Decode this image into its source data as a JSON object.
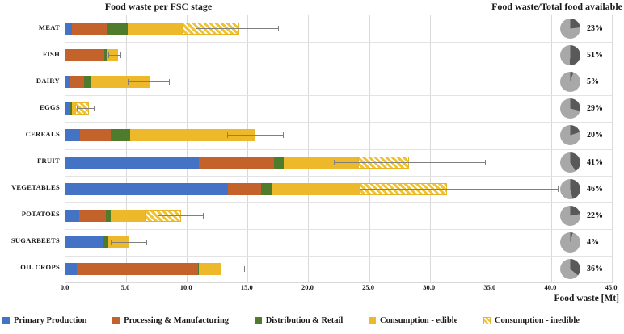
{
  "titles": {
    "left": "Food waste per FSC stage",
    "right": "Food waste/Total food available"
  },
  "colors": {
    "blue": "#4472C4",
    "orange": "#C3632B",
    "green": "#4E7B2C",
    "yellow": "#EDB829",
    "pie_dark": "#595959",
    "pie_light": "#A8A8A8",
    "grid": "#D9D9D9",
    "error_bar": "#7F7F7F"
  },
  "chart_data": {
    "type": "bar",
    "orientation": "horizontal",
    "stacked": true,
    "title": "Food waste per FSC stage",
    "xlabel": "Food waste [Mt]",
    "xlim": [
      0,
      45
    ],
    "grid": true,
    "x_ticks": [
      "0.0",
      "5.0",
      "10.0",
      "15.0",
      "20.0",
      "25.0",
      "30.0",
      "35.0",
      "40.0",
      "45.0"
    ],
    "categories": [
      "MEAT",
      "FISH",
      "DAIRY",
      "EGGS",
      "CEREALS",
      "FRUIT",
      "VEGETABLES",
      "POTATOES",
      "SUGARBEETS",
      "OIL CROPS"
    ],
    "series": [
      {
        "name": "Primary Production",
        "color": "#4472C4",
        "hatched": false,
        "values": [
          0.5,
          0.0,
          0.4,
          0.3,
          1.2,
          11.0,
          13.4,
          1.1,
          3.1,
          0.9
        ]
      },
      {
        "name": "Processing & Manufacturing",
        "color": "#C3632B",
        "hatched": false,
        "values": [
          2.9,
          3.2,
          1.1,
          0.1,
          2.5,
          6.2,
          2.7,
          2.2,
          0.0,
          10.0
        ]
      },
      {
        "name": "Distribution & Retail",
        "color": "#4E7B2C",
        "hatched": false,
        "values": [
          1.7,
          0.2,
          0.6,
          0.1,
          1.6,
          0.8,
          0.9,
          0.4,
          0.4,
          0.1
        ]
      },
      {
        "name": "Consumption - edible",
        "color": "#EDB829",
        "hatched": false,
        "values": [
          4.5,
          0.9,
          4.8,
          0.3,
          10.3,
          6.1,
          7.2,
          2.9,
          1.7,
          1.8
        ]
      },
      {
        "name": "Consumption - inedible",
        "color": "#EDB829",
        "hatched": true,
        "values": [
          4.7,
          0.0,
          0.0,
          1.1,
          0.0,
          4.2,
          7.2,
          2.9,
          0.0,
          0.0
        ]
      }
    ],
    "totals": [
      14.3,
      4.3,
      6.9,
      1.9,
      15.6,
      28.3,
      31.4,
      9.5,
      5.2,
      12.8
    ],
    "error_bars": {
      "low": [
        10.7,
        3.5,
        5.1,
        0.9,
        13.3,
        22.1,
        24.2,
        7.6,
        3.7,
        11.8
      ],
      "high": [
        17.6,
        4.6,
        8.6,
        2.4,
        18.0,
        34.6,
        40.6,
        11.4,
        6.7,
        14.8
      ]
    },
    "pies": {
      "title": "Food waste/Total food available",
      "labels": [
        "23%",
        "51%",
        "5%",
        "29%",
        "20%",
        "41%",
        "46%",
        "22%",
        "4%",
        "36%"
      ],
      "values": [
        23,
        51,
        5,
        29,
        20,
        41,
        46,
        22,
        4,
        36
      ]
    }
  }
}
